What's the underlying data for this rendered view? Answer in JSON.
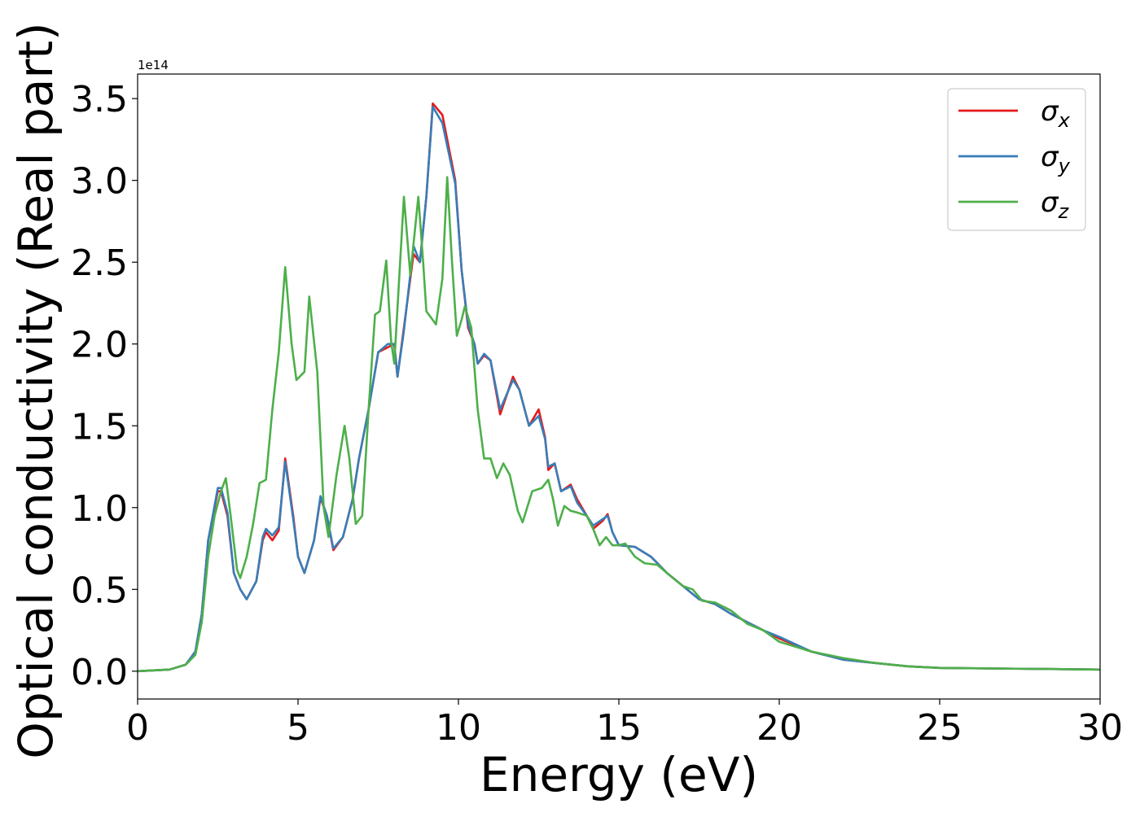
{
  "chart_data": {
    "type": "line",
    "title": "",
    "xlabel": "Energy (eV)",
    "ylabel": "Optical conductivity (Real part)",
    "y_offset_label": "1e14",
    "xlim": [
      0,
      30
    ],
    "ylim": [
      -0.17,
      3.65
    ],
    "x_ticks": [
      0,
      5,
      10,
      15,
      20,
      25,
      30
    ],
    "x_tick_labels": [
      "0",
      "5",
      "10",
      "15",
      "20",
      "25",
      "30"
    ],
    "y_ticks": [
      0.0,
      0.5,
      1.0,
      1.5,
      2.0,
      2.5,
      3.0,
      3.5
    ],
    "y_tick_labels": [
      "0.0",
      "0.5",
      "1.0",
      "1.5",
      "2.0",
      "2.5",
      "3.0",
      "3.5"
    ],
    "grid": false,
    "legend_position": "top-right",
    "series": [
      {
        "name": "σx",
        "symbol": "σ",
        "subscript": "x",
        "color": "#e41a1c",
        "points": [
          [
            0,
            0
          ],
          [
            1,
            0.01
          ],
          [
            1.5,
            0.04
          ],
          [
            1.8,
            0.12
          ],
          [
            2.0,
            0.35
          ],
          [
            2.2,
            0.8
          ],
          [
            2.5,
            1.1
          ],
          [
            2.6,
            1.1
          ],
          [
            2.8,
            0.95
          ],
          [
            3.0,
            0.6
          ],
          [
            3.2,
            0.5
          ],
          [
            3.4,
            0.44
          ],
          [
            3.7,
            0.55
          ],
          [
            3.9,
            0.8
          ],
          [
            4.0,
            0.85
          ],
          [
            4.2,
            0.8
          ],
          [
            4.4,
            0.86
          ],
          [
            4.6,
            1.3
          ],
          [
            4.85,
            0.95
          ],
          [
            5.0,
            0.7
          ],
          [
            5.2,
            0.6
          ],
          [
            5.5,
            0.8
          ],
          [
            5.7,
            1.06
          ],
          [
            5.9,
            0.95
          ],
          [
            6.1,
            0.74
          ],
          [
            6.4,
            0.82
          ],
          [
            6.7,
            1.05
          ],
          [
            6.9,
            1.3
          ],
          [
            7.2,
            1.6
          ],
          [
            7.5,
            1.95
          ],
          [
            7.8,
            1.98
          ],
          [
            8.0,
            2.0
          ],
          [
            8.1,
            1.8
          ],
          [
            8.3,
            2.1
          ],
          [
            8.6,
            2.55
          ],
          [
            8.8,
            2.5
          ],
          [
            9.0,
            2.9
          ],
          [
            9.2,
            3.47
          ],
          [
            9.5,
            3.4
          ],
          [
            9.9,
            3.0
          ],
          [
            10.1,
            2.45
          ],
          [
            10.3,
            2.1
          ],
          [
            10.5,
            2.0
          ],
          [
            10.6,
            1.88
          ],
          [
            10.8,
            1.93
          ],
          [
            11.0,
            1.9
          ],
          [
            11.3,
            1.57
          ],
          [
            11.7,
            1.8
          ],
          [
            11.9,
            1.72
          ],
          [
            12.2,
            1.5
          ],
          [
            12.5,
            1.6
          ],
          [
            12.7,
            1.43
          ],
          [
            12.8,
            1.23
          ],
          [
            13.0,
            1.27
          ],
          [
            13.2,
            1.1
          ],
          [
            13.5,
            1.14
          ],
          [
            13.7,
            1.05
          ],
          [
            14.0,
            0.95
          ],
          [
            14.2,
            0.87
          ],
          [
            14.5,
            0.92
          ],
          [
            14.65,
            0.96
          ],
          [
            14.8,
            0.85
          ],
          [
            15.0,
            0.77
          ],
          [
            15.5,
            0.76
          ],
          [
            16.0,
            0.7
          ],
          [
            16.5,
            0.6
          ],
          [
            17.0,
            0.52
          ],
          [
            17.5,
            0.44
          ],
          [
            18.0,
            0.41
          ],
          [
            18.5,
            0.35
          ],
          [
            19.0,
            0.3
          ],
          [
            19.5,
            0.25
          ],
          [
            20.0,
            0.2
          ],
          [
            21.0,
            0.12
          ],
          [
            22.0,
            0.07
          ],
          [
            23.0,
            0.05
          ],
          [
            24.0,
            0.03
          ],
          [
            25.0,
            0.02
          ],
          [
            30.0,
            0.01
          ]
        ]
      },
      {
        "name": "σy",
        "symbol": "σ",
        "subscript": "y",
        "color": "#377eb8",
        "points": [
          [
            0,
            0
          ],
          [
            1,
            0.01
          ],
          [
            1.5,
            0.04
          ],
          [
            1.8,
            0.12
          ],
          [
            2.0,
            0.35
          ],
          [
            2.2,
            0.8
          ],
          [
            2.5,
            1.12
          ],
          [
            2.6,
            1.12
          ],
          [
            2.8,
            0.97
          ],
          [
            3.0,
            0.6
          ],
          [
            3.2,
            0.5
          ],
          [
            3.4,
            0.44
          ],
          [
            3.7,
            0.55
          ],
          [
            3.9,
            0.82
          ],
          [
            4.0,
            0.87
          ],
          [
            4.2,
            0.83
          ],
          [
            4.4,
            0.88
          ],
          [
            4.6,
            1.28
          ],
          [
            4.85,
            0.93
          ],
          [
            5.0,
            0.7
          ],
          [
            5.2,
            0.6
          ],
          [
            5.5,
            0.8
          ],
          [
            5.7,
            1.07
          ],
          [
            5.9,
            0.95
          ],
          [
            6.1,
            0.75
          ],
          [
            6.4,
            0.82
          ],
          [
            6.7,
            1.05
          ],
          [
            6.9,
            1.3
          ],
          [
            7.2,
            1.6
          ],
          [
            7.5,
            1.95
          ],
          [
            7.8,
            2.0
          ],
          [
            8.0,
            2.0
          ],
          [
            8.1,
            1.8
          ],
          [
            8.3,
            2.08
          ],
          [
            8.6,
            2.6
          ],
          [
            8.8,
            2.5
          ],
          [
            9.0,
            2.9
          ],
          [
            9.2,
            3.45
          ],
          [
            9.5,
            3.35
          ],
          [
            9.9,
            2.98
          ],
          [
            10.1,
            2.45
          ],
          [
            10.3,
            2.12
          ],
          [
            10.5,
            2.0
          ],
          [
            10.6,
            1.88
          ],
          [
            10.8,
            1.94
          ],
          [
            11.0,
            1.9
          ],
          [
            11.3,
            1.6
          ],
          [
            11.7,
            1.78
          ],
          [
            11.9,
            1.72
          ],
          [
            12.2,
            1.5
          ],
          [
            12.5,
            1.56
          ],
          [
            12.7,
            1.42
          ],
          [
            12.8,
            1.25
          ],
          [
            13.0,
            1.27
          ],
          [
            13.2,
            1.1
          ],
          [
            13.5,
            1.13
          ],
          [
            13.7,
            1.03
          ],
          [
            14.0,
            0.95
          ],
          [
            14.2,
            0.89
          ],
          [
            14.5,
            0.93
          ],
          [
            14.65,
            0.95
          ],
          [
            14.8,
            0.85
          ],
          [
            15.0,
            0.77
          ],
          [
            15.5,
            0.76
          ],
          [
            16.0,
            0.7
          ],
          [
            16.5,
            0.6
          ],
          [
            17.0,
            0.52
          ],
          [
            17.5,
            0.44
          ],
          [
            18.0,
            0.41
          ],
          [
            18.5,
            0.35
          ],
          [
            19.0,
            0.3
          ],
          [
            19.5,
            0.25
          ],
          [
            20.0,
            0.21
          ],
          [
            21.0,
            0.12
          ],
          [
            22.0,
            0.07
          ],
          [
            23.0,
            0.05
          ],
          [
            24.0,
            0.03
          ],
          [
            25.0,
            0.02
          ],
          [
            30.0,
            0.01
          ]
        ]
      },
      {
        "name": "σz",
        "symbol": "σ",
        "subscript": "z",
        "color": "#4daf4a",
        "points": [
          [
            0,
            0
          ],
          [
            1,
            0.01
          ],
          [
            1.5,
            0.04
          ],
          [
            1.8,
            0.1
          ],
          [
            2.0,
            0.3
          ],
          [
            2.2,
            0.7
          ],
          [
            2.4,
            0.95
          ],
          [
            2.6,
            1.1
          ],
          [
            2.75,
            1.18
          ],
          [
            2.9,
            0.95
          ],
          [
            3.1,
            0.62
          ],
          [
            3.2,
            0.57
          ],
          [
            3.4,
            0.7
          ],
          [
            3.6,
            0.9
          ],
          [
            3.8,
            1.15
          ],
          [
            4.0,
            1.17
          ],
          [
            4.2,
            1.6
          ],
          [
            4.4,
            1.95
          ],
          [
            4.6,
            2.47
          ],
          [
            4.8,
            2.0
          ],
          [
            4.95,
            1.78
          ],
          [
            5.2,
            1.83
          ],
          [
            5.35,
            2.29
          ],
          [
            5.6,
            1.83
          ],
          [
            5.8,
            1.0
          ],
          [
            5.95,
            0.82
          ],
          [
            6.2,
            1.2
          ],
          [
            6.45,
            1.5
          ],
          [
            6.6,
            1.3
          ],
          [
            6.8,
            0.9
          ],
          [
            7.0,
            0.95
          ],
          [
            7.2,
            1.6
          ],
          [
            7.4,
            2.18
          ],
          [
            7.55,
            2.2
          ],
          [
            7.75,
            2.51
          ],
          [
            7.9,
            2.02
          ],
          [
            8.0,
            1.88
          ],
          [
            8.3,
            2.9
          ],
          [
            8.5,
            2.42
          ],
          [
            8.75,
            2.9
          ],
          [
            8.9,
            2.5
          ],
          [
            9.0,
            2.2
          ],
          [
            9.3,
            2.12
          ],
          [
            9.5,
            2.4
          ],
          [
            9.65,
            3.02
          ],
          [
            9.8,
            2.5
          ],
          [
            9.95,
            2.05
          ],
          [
            10.1,
            2.15
          ],
          [
            10.2,
            2.23
          ],
          [
            10.4,
            2.1
          ],
          [
            10.6,
            1.6
          ],
          [
            10.8,
            1.3
          ],
          [
            11.0,
            1.3
          ],
          [
            11.2,
            1.18
          ],
          [
            11.4,
            1.27
          ],
          [
            11.6,
            1.2
          ],
          [
            11.85,
            0.98
          ],
          [
            12.0,
            0.91
          ],
          [
            12.3,
            1.1
          ],
          [
            12.6,
            1.12
          ],
          [
            12.8,
            1.17
          ],
          [
            12.95,
            1.05
          ],
          [
            13.1,
            0.89
          ],
          [
            13.3,
            1.01
          ],
          [
            13.5,
            0.98
          ],
          [
            13.7,
            0.97
          ],
          [
            14.0,
            0.95
          ],
          [
            14.2,
            0.87
          ],
          [
            14.4,
            0.77
          ],
          [
            14.6,
            0.82
          ],
          [
            14.8,
            0.77
          ],
          [
            15.0,
            0.77
          ],
          [
            15.2,
            0.78
          ],
          [
            15.5,
            0.7
          ],
          [
            15.8,
            0.66
          ],
          [
            16.2,
            0.65
          ],
          [
            16.5,
            0.6
          ],
          [
            17.0,
            0.52
          ],
          [
            17.3,
            0.5
          ],
          [
            17.6,
            0.43
          ],
          [
            18.0,
            0.42
          ],
          [
            18.5,
            0.37
          ],
          [
            19.0,
            0.29
          ],
          [
            19.5,
            0.25
          ],
          [
            20.0,
            0.18
          ],
          [
            20.5,
            0.15
          ],
          [
            21.0,
            0.12
          ],
          [
            22.0,
            0.08
          ],
          [
            23.0,
            0.05
          ],
          [
            24.0,
            0.03
          ],
          [
            25.0,
            0.02
          ],
          [
            30.0,
            0.01
          ]
        ]
      }
    ]
  }
}
